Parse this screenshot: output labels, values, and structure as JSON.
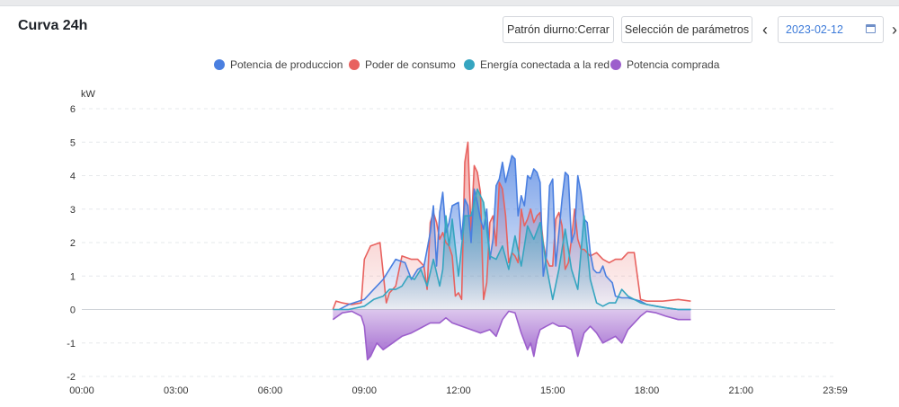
{
  "header": {
    "title": "Curva 24h",
    "pattern_button": "Patrón diurno:Cerrar",
    "params_button": "Selección de parámetros",
    "prev_icon": "‹",
    "next_icon": "›",
    "date": "2023-02-12"
  },
  "chart_data": {
    "type": "area",
    "title": "Curva 24h",
    "ylabel": "kW",
    "xlabel": "",
    "ylim": [
      -2,
      6
    ],
    "yticks": [
      "6",
      "5",
      "4",
      "3",
      "2",
      "1",
      "0",
      "-1",
      "-2"
    ],
    "xticks": [
      "00:00",
      "03:00",
      "06:00",
      "09:00",
      "12:00",
      "15:00",
      "18:00",
      "21:00",
      "23:59"
    ],
    "xlim_hours": [
      0,
      24
    ],
    "grid": "horizontal dashed",
    "legend_position": "top-center",
    "series": [
      {
        "name": "Potencia de produccion",
        "color": "#4a7fe0",
        "x": [
          8.2,
          8.5,
          9.0,
          9.3,
          9.6,
          9.8,
          10.0,
          10.3,
          10.5,
          10.7,
          10.9,
          11.0,
          11.1,
          11.2,
          11.3,
          11.4,
          11.5,
          11.6,
          11.7,
          11.8,
          12.0,
          12.1,
          12.2,
          12.3,
          12.4,
          12.5,
          12.6,
          12.7,
          12.8,
          12.9,
          13.0,
          13.1,
          13.2,
          13.3,
          13.4,
          13.5,
          13.6,
          13.7,
          13.8,
          13.9,
          14.0,
          14.1,
          14.2,
          14.3,
          14.4,
          14.5,
          14.6,
          14.7,
          14.8,
          14.9,
          15.0,
          15.1,
          15.2,
          15.3,
          15.4,
          15.5,
          15.6,
          15.7,
          15.8,
          15.9,
          16.0,
          16.1,
          16.2,
          16.3,
          16.4,
          16.5,
          16.6,
          16.7,
          16.8,
          16.9,
          17.0,
          17.2,
          17.4,
          17.6,
          17.8,
          18.0,
          18.3,
          18.6,
          19.0,
          19.4
        ],
        "values": [
          0.0,
          0.15,
          0.3,
          0.6,
          0.9,
          1.2,
          1.5,
          1.4,
          0.9,
          1.2,
          1.3,
          1.8,
          2.3,
          3.1,
          1.3,
          2.9,
          3.5,
          2.3,
          2.6,
          3.1,
          3.2,
          2.1,
          3.3,
          3.1,
          2.0,
          3.6,
          3.2,
          2.7,
          2.4,
          3.0,
          1.5,
          2.1,
          3.7,
          3.9,
          4.4,
          3.8,
          4.2,
          4.6,
          4.5,
          2.8,
          3.4,
          3.1,
          4.0,
          3.9,
          4.2,
          4.1,
          3.8,
          1.0,
          1.6,
          3.7,
          3.9,
          1.3,
          2.3,
          3.3,
          4.1,
          4.0,
          2.0,
          2.3,
          4.0,
          3.5,
          2.7,
          2.6,
          1.7,
          1.2,
          1.1,
          1.1,
          1.3,
          1.0,
          0.9,
          0.8,
          0.4,
          0.35,
          0.35,
          0.3,
          0.25,
          0.15,
          0.1,
          0.05,
          0.0,
          0.0
        ]
      },
      {
        "name": "Poder de consumo",
        "color": "#e8625f",
        "x": [
          8.0,
          8.1,
          8.3,
          8.6,
          8.9,
          9.0,
          9.2,
          9.5,
          9.7,
          9.8,
          10.0,
          10.2,
          10.5,
          10.7,
          10.9,
          11.0,
          11.1,
          11.2,
          11.3,
          11.4,
          11.5,
          11.6,
          11.7,
          11.8,
          11.9,
          12.0,
          12.1,
          12.2,
          12.3,
          12.4,
          12.5,
          12.6,
          12.7,
          12.8,
          12.9,
          13.0,
          13.1,
          13.2,
          13.3,
          13.4,
          13.5,
          13.6,
          13.7,
          13.8,
          13.9,
          14.0,
          14.1,
          14.2,
          14.3,
          14.4,
          14.5,
          14.6,
          14.7,
          14.8,
          14.9,
          15.0,
          15.1,
          15.2,
          15.3,
          15.4,
          15.5,
          15.6,
          15.7,
          15.8,
          15.9,
          16.0,
          16.2,
          16.4,
          16.6,
          16.8,
          17.0,
          17.2,
          17.4,
          17.6,
          17.8,
          18.0,
          18.5,
          19.0,
          19.4
        ],
        "values": [
          0.0,
          0.25,
          0.2,
          0.15,
          0.2,
          1.5,
          1.9,
          2.0,
          0.2,
          0.5,
          0.7,
          1.6,
          1.5,
          1.5,
          1.3,
          0.6,
          2.6,
          2.9,
          2.6,
          2.1,
          2.3,
          2.0,
          1.9,
          1.6,
          0.4,
          0.5,
          0.3,
          4.4,
          5.0,
          2.3,
          4.3,
          4.1,
          3.5,
          0.3,
          0.8,
          2.6,
          2.8,
          1.9,
          3.8,
          3.6,
          2.8,
          1.4,
          1.7,
          1.6,
          1.4,
          3.0,
          2.5,
          2.7,
          3.0,
          2.6,
          2.8,
          2.9,
          2.0,
          1.5,
          1.3,
          1.3,
          2.7,
          2.9,
          2.5,
          1.2,
          1.4,
          2.1,
          3.0,
          2.1,
          1.8,
          1.8,
          1.6,
          1.7,
          1.5,
          1.4,
          1.5,
          1.5,
          1.7,
          1.7,
          0.3,
          0.25,
          0.25,
          0.3,
          0.25
        ]
      },
      {
        "name": "Energía conectada a la red",
        "color": "#35a5c0",
        "x": [
          8.0,
          8.5,
          9.0,
          9.3,
          9.6,
          9.8,
          10.0,
          10.2,
          10.4,
          10.6,
          10.8,
          11.0,
          11.2,
          11.4,
          11.5,
          11.6,
          11.7,
          11.8,
          12.0,
          12.2,
          12.4,
          12.6,
          12.8,
          13.0,
          13.2,
          13.4,
          13.6,
          13.8,
          14.0,
          14.2,
          14.4,
          14.6,
          14.8,
          15.0,
          15.2,
          15.4,
          15.6,
          15.8,
          16.0,
          16.2,
          16.4,
          16.6,
          16.8,
          17.0,
          17.2,
          17.4,
          17.6,
          17.8,
          18.0,
          18.3,
          18.6,
          19.0,
          19.4
        ],
        "values": [
          0.0,
          0.0,
          0.1,
          0.3,
          0.4,
          0.6,
          0.6,
          0.7,
          1.0,
          0.9,
          1.2,
          0.7,
          1.5,
          0.7,
          1.2,
          2.8,
          1.9,
          2.7,
          1.0,
          2.8,
          2.8,
          3.6,
          3.2,
          1.6,
          1.5,
          1.9,
          1.2,
          2.2,
          1.3,
          2.5,
          2.1,
          2.6,
          1.3,
          0.3,
          1.2,
          2.4,
          1.2,
          0.6,
          2.8,
          0.9,
          0.2,
          0.1,
          0.2,
          0.2,
          0.6,
          0.4,
          0.3,
          0.2,
          0.15,
          0.1,
          0.05,
          0.0,
          0.0
        ]
      },
      {
        "name": "Potencia comprada",
        "color": "#9c5fcc",
        "x": [
          8.0,
          8.3,
          8.6,
          8.9,
          9.0,
          9.1,
          9.2,
          9.4,
          9.6,
          9.9,
          10.2,
          10.5,
          10.8,
          11.1,
          11.4,
          11.6,
          11.8,
          12.1,
          12.4,
          12.7,
          13.0,
          13.2,
          13.4,
          13.6,
          13.8,
          14.0,
          14.2,
          14.3,
          14.4,
          14.5,
          14.6,
          14.8,
          15.0,
          15.2,
          15.4,
          15.6,
          15.8,
          16.0,
          16.2,
          16.4,
          16.6,
          16.8,
          17.0,
          17.2,
          17.4,
          17.6,
          17.8,
          18.0,
          18.3,
          18.6,
          19.0,
          19.4
        ],
        "values": [
          -0.3,
          -0.1,
          -0.05,
          -0.2,
          -0.5,
          -1.5,
          -1.4,
          -1.0,
          -1.2,
          -1.0,
          -0.8,
          -0.7,
          -0.55,
          -0.4,
          -0.4,
          -0.25,
          -0.4,
          -0.5,
          -0.6,
          -0.7,
          -0.6,
          -0.8,
          -0.3,
          -0.05,
          -0.1,
          -0.7,
          -1.2,
          -1.0,
          -1.4,
          -0.9,
          -0.6,
          -0.5,
          -0.4,
          -0.5,
          -0.5,
          -0.6,
          -1.4,
          -0.7,
          -0.5,
          -0.7,
          -1.0,
          -0.9,
          -0.8,
          -1.0,
          -0.6,
          -0.4,
          -0.2,
          -0.05,
          -0.1,
          -0.2,
          -0.3,
          -0.3
        ]
      }
    ]
  }
}
